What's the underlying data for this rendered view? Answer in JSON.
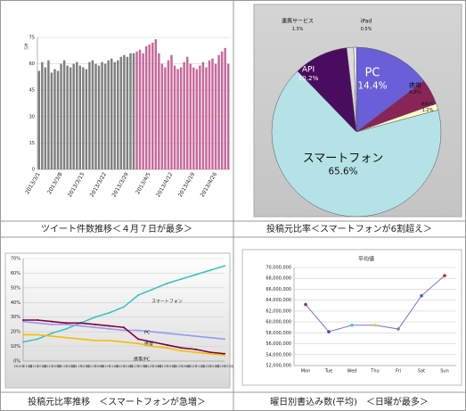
{
  "chart_data": [
    {
      "type": "bar",
      "caption": "ツイート件数推移＜４月７日が最多＞",
      "y_label": "万件",
      "categories": [
        "2013/3/1",
        null,
        null,
        null,
        null,
        null,
        null,
        "2013/3/8",
        null,
        null,
        null,
        null,
        null,
        null,
        "2013/3/15",
        null,
        null,
        null,
        null,
        null,
        null,
        "2013/3/22",
        null,
        null,
        null,
        null,
        null,
        null,
        "2013/3/29",
        null,
        null,
        null,
        null,
        null,
        null,
        "2013/4/5",
        null,
        null,
        null,
        null,
        null,
        null,
        "2013/4/12",
        null,
        null,
        null,
        null,
        null,
        null,
        "2013/4/19",
        null,
        null,
        null,
        null,
        null,
        null,
        "2013/4/26",
        null,
        null,
        null,
        null
      ],
      "series": [
        {
          "color": "#7f7f7f",
          "values": [
            56,
            61,
            58,
            62,
            55,
            57,
            56,
            60,
            62,
            59,
            58,
            60,
            61,
            59,
            58,
            57,
            61,
            62,
            60,
            59,
            61,
            60,
            62,
            63,
            61,
            62,
            64,
            65,
            64,
            66,
            66,
            null,
            null,
            null,
            null,
            null,
            null,
            null,
            null,
            null,
            null,
            null,
            null,
            null,
            null,
            null,
            null,
            null,
            null,
            null,
            null,
            null,
            null,
            null,
            null,
            null,
            null,
            null,
            null,
            null,
            null
          ]
        },
        {
          "color": "#c8689a",
          "values": [
            null,
            null,
            null,
            null,
            null,
            null,
            null,
            null,
            null,
            null,
            null,
            null,
            null,
            null,
            null,
            null,
            null,
            null,
            null,
            null,
            null,
            null,
            null,
            null,
            null,
            null,
            null,
            null,
            null,
            null,
            null,
            67,
            68,
            66,
            70,
            71,
            72,
            74,
            66,
            60,
            58,
            62,
            65,
            59,
            57,
            58,
            61,
            64,
            60,
            58,
            57,
            59,
            61,
            58,
            62,
            63,
            60,
            65,
            67,
            69,
            60
          ]
        }
      ],
      "ylim": [
        0,
        75
      ],
      "yticks": [
        0,
        15,
        30,
        45,
        60,
        75
      ],
      "grid": true
    },
    {
      "type": "pie",
      "caption": "投稿元比率＜スマートフォンが6割超え＞",
      "categories": [
        "PC",
        "携帯",
        "携帯/PC",
        "スマートフォン",
        "API",
        "連携サービス",
        "iPad"
      ],
      "values": [
        14.4,
        4.8,
        1.2,
        65.6,
        10.2,
        1.3,
        0.5
      ],
      "value_labels": [
        "14.4%",
        "4.8%",
        "1.2%",
        "65.6%",
        "10.2%",
        "1.3%",
        "0.5%"
      ],
      "colors": [
        "#6a5fd8",
        "#8a2456",
        "#fbf7c8",
        "#b5e2e6",
        "#4a0c5e",
        "#dcdcdc",
        "#f4f4f4"
      ]
    },
    {
      "type": "line",
      "caption": "投稿元比率推移　＜スマートフォンが急増＞",
      "categories": [
        "2010年11月",
        "2011年01月",
        "2011年03月",
        "2011年05月",
        "2011年07月",
        "2011年09月",
        "2011年11月",
        "2012年01月",
        "2012年03月",
        "2012年05月",
        "2012年07月",
        "2012年09月",
        "2012年11月",
        "2013年01月",
        "2013年03月"
      ],
      "series": [
        {
          "name": "スマートフォン",
          "color": "#3cc4c0",
          "values": [
            13,
            15,
            19,
            22,
            26,
            30,
            33,
            37,
            45,
            49,
            53,
            56,
            59,
            62,
            65
          ]
        },
        {
          "name": "PC",
          "color": "#9a9aec",
          "values": [
            27,
            26,
            25,
            25,
            24,
            23,
            22,
            21,
            21,
            20,
            19,
            18,
            17,
            16,
            15
          ]
        },
        {
          "name": "携帯",
          "color": "#800040",
          "values": [
            28,
            28,
            27,
            26,
            26,
            25,
            24,
            23,
            15,
            13,
            11,
            9,
            8,
            6,
            5
          ]
        },
        {
          "name": "携帯/PC",
          "color": "#f0c000",
          "values": [
            18,
            18,
            17,
            16,
            15,
            14,
            14,
            13,
            12,
            10,
            9,
            7,
            6,
            5,
            4
          ]
        }
      ],
      "ylim": [
        0,
        70
      ],
      "yticks": [
        {
          "value": 0,
          "label": "0%"
        },
        {
          "value": 10,
          "label": "10%"
        },
        {
          "value": 20,
          "label": "20%"
        },
        {
          "value": 30,
          "label": "30%"
        },
        {
          "value": 40,
          "label": "40%"
        },
        {
          "value": 50,
          "label": "50%"
        },
        {
          "value": 60,
          "label": "60%"
        },
        {
          "value": 70,
          "label": "70%"
        }
      ],
      "grid": true
    },
    {
      "type": "line",
      "caption": "曜日別書込み数(平均)　＜日曜が最多＞",
      "title": "平均値",
      "categories": [
        "Mon",
        "Tue",
        "Wed",
        "Thu",
        "Fri",
        "Sat",
        "Sun"
      ],
      "series": [
        {
          "color": "#7b70d4",
          "values": [
            63200000,
            58200000,
            59400000,
            59400000,
            58700000,
            64800000,
            68500000
          ],
          "marker_colors": [
            "#8b2a8b",
            "#3050c0",
            "#40c8d8",
            "#e8d040",
            "#8080a0",
            "#3c60c8",
            "#d02020"
          ]
        }
      ],
      "ylim": [
        52000000,
        70000000
      ],
      "yticks": [
        {
          "value": 52000000,
          "label": "52,000,000"
        },
        {
          "value": 54000000,
          "label": "54,000,000"
        },
        {
          "value": 56000000,
          "label": "56,000,000"
        },
        {
          "value": 58000000,
          "label": "58,000,000"
        },
        {
          "value": 60000000,
          "label": "60,000,000"
        },
        {
          "value": 62000000,
          "label": "62,000,000"
        },
        {
          "value": 64000000,
          "label": "64,000,000"
        },
        {
          "value": 66000000,
          "label": "66,000,000"
        },
        {
          "value": 68000000,
          "label": "68,000,000"
        },
        {
          "value": 70000000,
          "label": "70,000,000"
        }
      ],
      "grid": true
    }
  ]
}
